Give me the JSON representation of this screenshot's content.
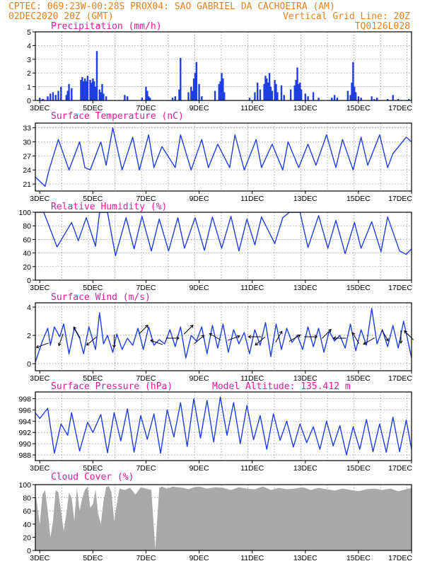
{
  "header": {
    "line1_left": "CPTEC:   069:23W-00:28S   PROX04: SAO GABRIEL DA CACHOEIRA (AM)",
    "line2_left": "02DEC2020 20Z (GMT)",
    "line2_right": "Vertical Grid Line: 20Z",
    "line3_right": "TQ0126L028"
  },
  "colors": {
    "header": "#e8801e",
    "titles": "#e8199c",
    "series": "#1f3fe0",
    "cloud": "#a9a9a9",
    "grid": "#9a9a9a"
  },
  "chart_data": [
    {
      "type": "bar",
      "title": "Precipitation (mm/h)",
      "xlabel": "",
      "ylabel": "",
      "ylim": [
        0,
        5
      ],
      "yticks": [
        0,
        1,
        2,
        3,
        4,
        5
      ],
      "xticks": [
        "3DEC",
        "5DEC",
        "7DEC",
        "9DEC",
        "11DEC",
        "13DEC",
        "15DEC",
        "17DEC"
      ],
      "xlim": [
        2.8333,
        17.0
      ],
      "grid": true,
      "x": [
        3.0,
        3.1,
        3.13,
        3.3,
        3.4,
        3.5,
        3.6,
        3.7,
        3.8,
        4.0,
        4.05,
        4.1,
        4.2,
        4.55,
        4.6,
        4.65,
        4.7,
        4.75,
        4.8,
        4.9,
        4.95,
        5.0,
        5.05,
        5.1,
        5.15,
        5.25,
        5.3,
        5.35,
        5.4,
        5.5,
        6.2,
        6.3,
        6.85,
        7.0,
        7.05,
        7.1,
        7.15,
        8.0,
        8.1,
        8.25,
        8.3,
        8.6,
        8.7,
        8.75,
        8.8,
        8.85,
        8.9,
        9.0,
        9.1,
        9.6,
        9.75,
        9.8,
        9.85,
        9.9,
        9.95,
        10.9,
        11.1,
        11.2,
        11.3,
        11.45,
        11.5,
        11.55,
        11.6,
        11.65,
        11.7,
        11.75,
        11.85,
        11.9,
        11.95,
        12.1,
        12.2,
        12.45,
        12.6,
        12.65,
        12.7,
        12.75,
        12.8,
        12.85,
        13.0,
        13.1,
        13.3,
        13.5,
        14.0,
        14.1,
        14.2,
        14.6,
        14.7,
        14.75,
        14.8,
        14.85,
        14.9,
        15.0,
        15.1,
        15.5,
        15.6,
        15.7,
        16.1,
        16.3,
        16.5,
        16.9
      ],
      "values": [
        0.2,
        0.1,
        0.1,
        0.3,
        0.5,
        0.6,
        0.4,
        0.7,
        1.0,
        0.4,
        0.7,
        1.2,
        0.9,
        1.5,
        1.7,
        1.4,
        1.6,
        1.4,
        1.8,
        1.5,
        1.3,
        1.6,
        1.4,
        1.0,
        3.6,
        0.8,
        0.6,
        1.2,
        0.5,
        0.3,
        0.4,
        0.3,
        0.2,
        1.0,
        0.7,
        0.3,
        0.2,
        0.2,
        0.3,
        0.8,
        3.1,
        0.6,
        1.0,
        0.7,
        1.6,
        2.0,
        2.8,
        1.2,
        0.3,
        0.7,
        1.2,
        1.4,
        2.0,
        1.6,
        0.6,
        0.2,
        0.6,
        1.3,
        0.8,
        1.2,
        1.8,
        1.6,
        1.3,
        2.0,
        1.0,
        0.7,
        1.5,
        1.2,
        0.6,
        1.1,
        0.4,
        0.8,
        1.1,
        1.5,
        2.4,
        1.2,
        1.3,
        0.8,
        0.5,
        0.3,
        0.6,
        0.2,
        0.2,
        0.4,
        0.2,
        0.7,
        0.4,
        1.3,
        2.8,
        1.0,
        0.6,
        0.3,
        0.2,
        0.3,
        0.1,
        0.2,
        0.1,
        0.4,
        0.1,
        0.1
      ]
    },
    {
      "type": "line",
      "title": "Surface Temperature (nC)",
      "xlabel": "",
      "ylabel": "",
      "ylim": [
        19.5,
        34
      ],
      "yticks": [
        21,
        24,
        27,
        30,
        33
      ],
      "xticks": [
        "3DEC",
        "5DEC",
        "7DEC",
        "9DEC",
        "11DEC",
        "13DEC",
        "15DEC",
        "17DEC"
      ],
      "xlim": [
        2.8333,
        17.0
      ],
      "grid": true,
      "x": [
        2.83,
        3.2,
        3.35,
        3.7,
        4.1,
        4.5,
        4.7,
        4.9,
        5.3,
        5.5,
        5.75,
        6.1,
        6.5,
        6.75,
        7.1,
        7.3,
        7.6,
        8.1,
        8.3,
        8.7,
        9.1,
        9.35,
        9.7,
        10.15,
        10.35,
        10.7,
        11.15,
        11.35,
        11.75,
        12.15,
        12.35,
        12.75,
        13.1,
        13.4,
        13.8,
        14.15,
        14.4,
        14.8,
        15.1,
        15.35,
        15.8,
        16.1,
        16.3,
        16.8,
        17.0
      ],
      "values": [
        22.5,
        20.5,
        24.0,
        30.5,
        24.0,
        30.0,
        24.5,
        24.0,
        30.0,
        25.0,
        33.0,
        24.0,
        31.0,
        24.0,
        31.5,
        24.5,
        29.0,
        24.5,
        31.5,
        24.0,
        30.5,
        24.5,
        29.5,
        24.5,
        31.5,
        24.0,
        30.5,
        24.5,
        29.5,
        24.0,
        30.0,
        24.5,
        29.5,
        25.0,
        31.5,
        24.5,
        30.5,
        24.0,
        31.0,
        25.0,
        31.5,
        24.5,
        27.5,
        31.0,
        30.0
      ]
    },
    {
      "type": "line",
      "title": "Relative Humidity (%)",
      "xlabel": "",
      "ylabel": "",
      "ylim": [
        0,
        100
      ],
      "yticks": [
        0,
        20,
        40,
        60,
        80,
        100
      ],
      "xticks": [
        "3DEC",
        "5DEC",
        "7DEC",
        "9DEC",
        "11DEC",
        "13DEC",
        "15DEC",
        "17DEC"
      ],
      "xlim": [
        2.8333,
        17.0
      ],
      "grid": true,
      "x": [
        2.83,
        3.15,
        3.65,
        4.2,
        4.45,
        4.75,
        5.1,
        5.25,
        5.55,
        5.85,
        6.25,
        6.55,
        6.85,
        7.2,
        7.5,
        7.85,
        8.2,
        8.45,
        8.85,
        9.2,
        9.5,
        9.85,
        10.2,
        10.5,
        10.8,
        11.1,
        11.35,
        11.85,
        12.15,
        12.4,
        12.8,
        13.1,
        13.5,
        13.85,
        14.15,
        14.5,
        14.85,
        15.1,
        15.5,
        15.85,
        16.1,
        16.55,
        16.8,
        17.0
      ],
      "values": [
        100,
        100,
        49,
        85,
        58,
        92,
        50,
        100,
        100,
        36,
        92,
        46,
        94,
        43,
        90,
        43,
        92,
        47,
        92,
        44,
        93,
        47,
        94,
        43,
        90,
        52,
        93,
        54,
        92,
        100,
        100,
        48,
        95,
        47,
        88,
        39,
        85,
        47,
        86,
        42,
        93,
        43,
        38,
        46
      ]
    },
    {
      "type": "line",
      "title": "Surface Wind (m/s)",
      "xlabel": "",
      "ylabel": "",
      "ylim": [
        -0.5,
        4.3
      ],
      "yticks": [
        0,
        2,
        4
      ],
      "xticks": [
        "3DEC",
        "5DEC",
        "7DEC",
        "9DEC",
        "11DEC",
        "13DEC",
        "15DEC",
        "17DEC"
      ],
      "xlim": [
        2.8333,
        17.0
      ],
      "grid": true,
      "x": [
        2.83,
        3.1,
        3.3,
        3.4,
        3.55,
        3.75,
        3.9,
        4.1,
        4.3,
        4.5,
        4.65,
        4.85,
        5.1,
        5.25,
        5.4,
        5.55,
        5.75,
        5.9,
        6.1,
        6.3,
        6.5,
        6.7,
        6.9,
        7.1,
        7.3,
        7.5,
        7.7,
        7.9,
        8.1,
        8.3,
        8.5,
        8.7,
        8.9,
        9.1,
        9.3,
        9.5,
        9.7,
        9.9,
        10.1,
        10.3,
        10.5,
        10.7,
        10.9,
        11.1,
        11.3,
        11.5,
        11.7,
        11.9,
        12.1,
        12.3,
        12.5,
        12.7,
        12.9,
        13.1,
        13.3,
        13.5,
        13.7,
        13.9,
        14.1,
        14.3,
        14.5,
        14.7,
        14.9,
        15.1,
        15.3,
        15.5,
        15.7,
        15.9,
        16.1,
        16.3,
        16.5,
        16.7,
        16.9,
        17.0
      ],
      "values": [
        0.1,
        1.6,
        2.5,
        1.3,
        2.6,
        1.9,
        2.8,
        0.7,
        2.5,
        1.8,
        0.7,
        2.6,
        1.0,
        3.6,
        1.4,
        2.0,
        0.8,
        2.1,
        1.0,
        1.8,
        1.3,
        2.5,
        1.0,
        2.6,
        1.3,
        1.7,
        1.4,
        2.4,
        1.2,
        2.6,
        0.4,
        2.0,
        1.6,
        2.6,
        0.7,
        2.7,
        1.1,
        2.8,
        0.8,
        2.4,
        1.4,
        2.2,
        0.7,
        2.4,
        1.3,
        2.9,
        0.5,
        2.8,
        1.0,
        2.5,
        1.5,
        2.0,
        1.0,
        2.6,
        1.2,
        2.5,
        0.8,
        2.3,
        1.6,
        2.0,
        1.1,
        2.8,
        0.9,
        2.4,
        1.3,
        3.9,
        1.4,
        2.4,
        1.2,
        2.7,
        1.1,
        3.0,
        1.3,
        0.4
      ],
      "arrows": [
        {
          "x": 3.1,
          "y": 1.3,
          "dir": 200
        },
        {
          "x": 3.8,
          "y": 1.7,
          "dir": 250
        },
        {
          "x": 4.4,
          "y": 2.2,
          "dir": 120
        },
        {
          "x": 4.95,
          "y": 1.6,
          "dir": 220
        },
        {
          "x": 5.8,
          "y": 1.6,
          "dir": 270
        },
        {
          "x": 6.9,
          "y": 2.4,
          "dir": 45
        },
        {
          "x": 7.4,
          "y": 1.5,
          "dir": 160
        },
        {
          "x": 8.0,
          "y": 1.8,
          "dir": 0
        },
        {
          "x": 8.6,
          "y": 2.4,
          "dir": 45
        },
        {
          "x": 9.0,
          "y": 1.7,
          "dir": 40
        },
        {
          "x": 9.6,
          "y": 1.9,
          "dir": 150
        },
        {
          "x": 10.3,
          "y": 1.8,
          "dir": 20
        },
        {
          "x": 11.1,
          "y": 1.9,
          "dir": 180
        },
        {
          "x": 11.3,
          "y": 1.6,
          "dir": 220
        },
        {
          "x": 12.0,
          "y": 1.9,
          "dir": 60
        },
        {
          "x": 12.6,
          "y": 1.8,
          "dir": 30
        },
        {
          "x": 13.2,
          "y": 1.9,
          "dir": 0
        },
        {
          "x": 13.8,
          "y": 2.1,
          "dir": 45
        },
        {
          "x": 14.3,
          "y": 1.8,
          "dir": 180
        },
        {
          "x": 14.9,
          "y": 1.8,
          "dir": 120
        },
        {
          "x": 15.4,
          "y": 1.6,
          "dir": 210
        },
        {
          "x": 16.0,
          "y": 2.0,
          "dir": 300
        },
        {
          "x": 16.6,
          "y": 1.9,
          "dir": 270
        },
        {
          "x": 16.9,
          "y": 2.0,
          "dir": 135
        }
      ]
    },
    {
      "type": "line",
      "title": "Surface Pressure (hPa)",
      "annotation": "Model Altitude: 135.412 m",
      "xlabel": "",
      "ylabel": "",
      "ylim": [
        987,
        999.2
      ],
      "yticks": [
        988,
        990,
        992,
        994,
        996,
        998
      ],
      "xticks": [
        "3DEC",
        "5DEC",
        "7DEC",
        "9DEC",
        "11DEC",
        "13DEC",
        "15DEC",
        "17DEC"
      ],
      "xlim": [
        2.8333,
        17.0
      ],
      "grid": true,
      "x": [
        2.83,
        3.0,
        3.3,
        3.55,
        3.8,
        4.05,
        4.2,
        4.5,
        4.8,
        5.0,
        5.3,
        5.55,
        5.8,
        6.05,
        6.3,
        6.55,
        6.8,
        7.05,
        7.3,
        7.55,
        7.8,
        8.05,
        8.3,
        8.55,
        8.8,
        9.05,
        9.3,
        9.55,
        9.8,
        10.05,
        10.3,
        10.55,
        10.8,
        11.05,
        11.3,
        11.55,
        11.8,
        12.05,
        12.3,
        12.55,
        12.8,
        13.05,
        13.3,
        13.55,
        13.8,
        14.05,
        14.3,
        14.55,
        14.8,
        15.05,
        15.3,
        15.55,
        15.8,
        16.05,
        16.3,
        16.55,
        16.8,
        17.0
      ],
      "values": [
        995.5,
        994.5,
        996.3,
        988.3,
        993.5,
        991.5,
        995.5,
        988.7,
        993.8,
        992.0,
        995.2,
        988.4,
        995.5,
        990.5,
        996.2,
        988.5,
        995.0,
        990.8,
        995.3,
        988.3,
        996.0,
        991.2,
        997.3,
        989.5,
        998.0,
        991.0,
        997.7,
        990.3,
        998.3,
        991.5,
        997.3,
        990.0,
        996.8,
        990.7,
        995.0,
        989.0,
        995.3,
        990.6,
        994.0,
        989.4,
        993.5,
        990.2,
        993.0,
        989.0,
        994.0,
        989.6,
        993.2,
        988.0,
        993.0,
        989.0,
        994.3,
        988.6,
        993.5,
        988.5,
        994.7,
        988.6,
        994.2,
        989.0
      ]
    },
    {
      "type": "area",
      "title": "Cloud Cover (%)",
      "xlabel": "",
      "ylabel": "",
      "ylim": [
        0,
        100
      ],
      "yticks": [
        0,
        20,
        40,
        60,
        80,
        100
      ],
      "xticks": [
        "3DEC",
        "5DEC",
        "7DEC",
        "9DEC",
        "11DEC",
        "13DEC",
        "15DEC",
        "17DEC"
      ],
      "xlim": [
        2.8333,
        17.0
      ],
      "grid": true,
      "x": [
        2.83,
        2.9,
        3.0,
        3.1,
        3.2,
        3.3,
        3.4,
        3.5,
        3.6,
        3.7,
        3.8,
        3.9,
        4.0,
        4.1,
        4.2,
        4.3,
        4.4,
        4.5,
        4.6,
        4.7,
        4.8,
        4.9,
        5.0,
        5.1,
        5.2,
        5.3,
        5.4,
        5.5,
        5.6,
        5.7,
        5.8,
        5.9,
        6.0,
        6.2,
        6.4,
        6.6,
        6.8,
        7.0,
        7.2,
        7.35,
        7.5,
        7.6,
        7.8,
        8.0,
        8.2,
        8.4,
        8.6,
        8.8,
        9.0,
        9.3,
        9.6,
        9.9,
        10.2,
        10.5,
        10.8,
        11.1,
        11.4,
        11.7,
        12.0,
        12.3,
        12.6,
        12.9,
        13.2,
        13.5,
        13.8,
        14.1,
        14.4,
        14.7,
        15.0,
        15.3,
        15.6,
        15.9,
        16.2,
        16.5,
        16.8,
        17.0
      ],
      "values": [
        88,
        70,
        40,
        85,
        92,
        60,
        20,
        45,
        92,
        88,
        60,
        30,
        55,
        88,
        80,
        45,
        95,
        60,
        80,
        92,
        97,
        65,
        70,
        93,
        55,
        40,
        75,
        96,
        98,
        88,
        45,
        70,
        94,
        92,
        95,
        85,
        96,
        94,
        92,
        2,
        95,
        97,
        94,
        97,
        96,
        95,
        93,
        96,
        97,
        94,
        96,
        95,
        92,
        96,
        94,
        93,
        97,
        92,
        95,
        93,
        94,
        96,
        92,
        95,
        93,
        91,
        94,
        92,
        90,
        93,
        94,
        92,
        94,
        90,
        93,
        95
      ]
    }
  ]
}
